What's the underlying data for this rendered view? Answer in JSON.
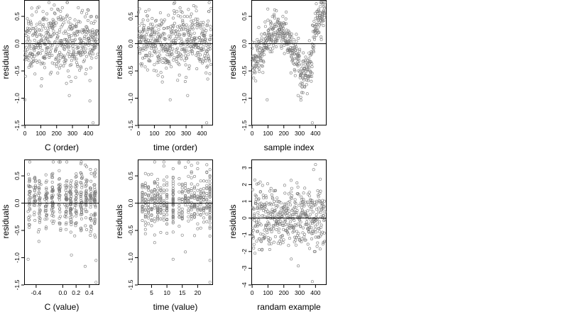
{
  "chart_data": [
    {
      "type": "scatter",
      "xlabel": "C (order)",
      "ylabel": "residuals",
      "xlim": [
        -5,
        470
      ],
      "ylim": [
        -1.5,
        0.8
      ],
      "xticks": [
        0,
        100,
        200,
        300,
        400
      ],
      "xtick_labels": [
        "0",
        "100",
        "200",
        "300",
        "400"
      ],
      "yticks": [
        -1.5,
        -1.0,
        -0.5,
        0.0,
        0.5
      ],
      "ytick_labels": [
        "-1.5",
        "-1.0",
        "-0.5",
        "0.0",
        "0.5"
      ],
      "hline": 0,
      "grid": false,
      "pattern": "order",
      "n_points": 460,
      "seed": 11,
      "extra_points": [
        {
          "x": 0,
          "y": -1.03
        },
        {
          "x": 280,
          "y": -0.95
        },
        {
          "x": 410,
          "y": -1.05
        },
        {
          "x": 430,
          "y": -1.45
        }
      ]
    },
    {
      "type": "scatter",
      "xlabel": "time (order)",
      "ylabel": "residuals",
      "xlim": [
        -5,
        470
      ],
      "ylim": [
        -1.5,
        0.8
      ],
      "xticks": [
        0,
        100,
        200,
        300,
        400
      ],
      "xtick_labels": [
        "0",
        "100",
        "200",
        "300",
        "400"
      ],
      "yticks": [
        -1.5,
        -1.0,
        -0.5,
        0.0,
        0.5
      ],
      "ytick_labels": [
        "-1.5",
        "-1.0",
        "-0.5",
        "0.0",
        "0.5"
      ],
      "hline": 0,
      "grid": false,
      "pattern": "order",
      "n_points": 460,
      "seed": 23,
      "extra_points": [
        {
          "x": 200,
          "y": -1.03
        },
        {
          "x": 310,
          "y": -0.95
        },
        {
          "x": 430,
          "y": -1.45
        }
      ]
    },
    {
      "type": "scatter",
      "xlabel": "sample index",
      "ylabel": "residuals",
      "xlim": [
        -5,
        470
      ],
      "ylim": [
        -1.5,
        0.8
      ],
      "xticks": [
        0,
        100,
        200,
        300,
        400
      ],
      "xtick_labels": [
        "0",
        "100",
        "200",
        "300",
        "400"
      ],
      "yticks": [
        -1.5,
        -1.0,
        -0.5,
        0.0,
        0.5
      ],
      "ytick_labels": [
        "-1.5",
        "-1.0",
        "-0.5",
        "0.0",
        "0.5"
      ],
      "hline": 0,
      "grid": false,
      "pattern": "index",
      "n_points": 460,
      "seed": 37,
      "extra_points": [
        {
          "x": 95,
          "y": -1.03
        },
        {
          "x": 290,
          "y": -0.95
        },
        {
          "x": 380,
          "y": -1.45
        }
      ]
    },
    {
      "type": "scatter",
      "xlabel": "C (value)",
      "ylabel": "residuals",
      "xlim": [
        -0.58,
        0.55
      ],
      "ylim": [
        -1.5,
        0.8
      ],
      "xticks": [
        -0.4,
        0.0,
        0.2,
        0.4
      ],
      "xtick_labels": [
        "-0.4",
        "0.0",
        "0.2",
        "0.4"
      ],
      "yticks": [
        -1.5,
        -1.0,
        -0.5,
        0.0,
        0.5
      ],
      "ytick_labels": [
        "-1.5",
        "-1.0",
        "-0.5",
        "0.0",
        "0.5"
      ],
      "hline": 0,
      "grid": false,
      "pattern": "cvalue",
      "n_points": 460,
      "seed": 51,
      "extra_points": [
        {
          "x": -0.52,
          "y": -1.03
        },
        {
          "x": 0.13,
          "y": -0.95
        },
        {
          "x": 0.5,
          "y": -1.05
        },
        {
          "x": 0.5,
          "y": -1.45
        }
      ]
    },
    {
      "type": "scatter",
      "xlabel": "time (value)",
      "ylabel": "residuals",
      "xlim": [
        0.5,
        25
      ],
      "ylim": [
        -1.5,
        0.8
      ],
      "xticks": [
        5,
        10,
        15,
        20
      ],
      "xtick_labels": [
        "5",
        "10",
        "15",
        "20"
      ],
      "yticks": [
        -1.5,
        -1.0,
        -0.5,
        0.0,
        0.5
      ],
      "ytick_labels": [
        "-1.5",
        "-1.0",
        "-0.5",
        "0.0",
        "0.5"
      ],
      "hline": 0,
      "grid": false,
      "pattern": "tvalue",
      "n_points": 460,
      "seed": 67,
      "extra_points": [
        {
          "x": 12,
          "y": -1.03
        },
        {
          "x": 24,
          "y": -1.05
        },
        {
          "x": 24,
          "y": -1.45
        }
      ]
    },
    {
      "type": "scatter",
      "xlabel": "randam example",
      "ylabel": "residuals",
      "xlim": [
        -5,
        470
      ],
      "ylim": [
        -4,
        3.5
      ],
      "xticks": [
        0,
        100,
        200,
        300,
        400
      ],
      "xtick_labels": [
        "0",
        "100",
        "200",
        "300",
        "400"
      ],
      "yticks": [
        -4,
        -3,
        -2,
        -1,
        0,
        1,
        2,
        3
      ],
      "ytick_labels": [
        "-4",
        "-3",
        "-2",
        "-1",
        "0",
        "1",
        "2",
        "3"
      ],
      "hline": 0,
      "grid": false,
      "pattern": "random",
      "n_points": 460,
      "seed": 83,
      "extra_points": [
        {
          "x": 400,
          "y": 3.2
        },
        {
          "x": 380,
          "y": -3.8
        }
      ]
    }
  ]
}
